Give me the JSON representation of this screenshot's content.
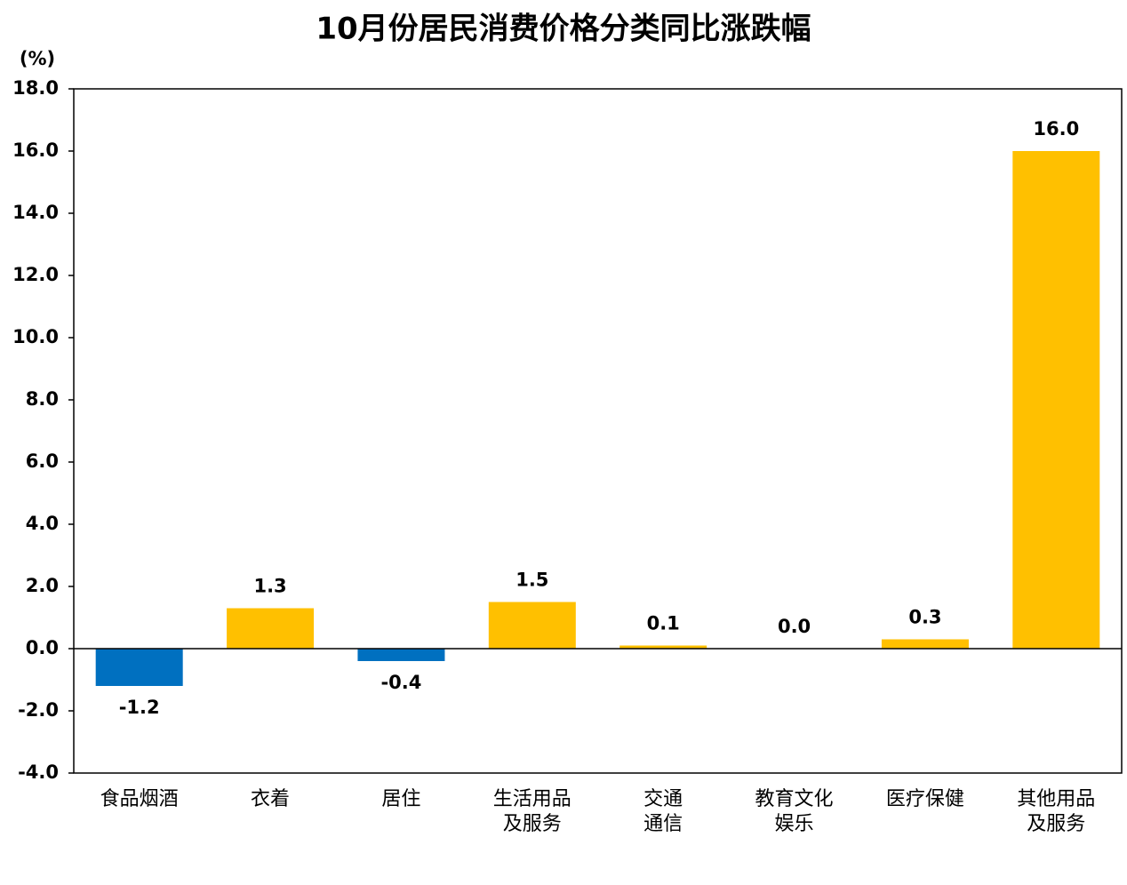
{
  "chart_data": {
    "type": "bar",
    "title": "10月份居民消费价格分类同比涨跌幅",
    "y_label": "(%)",
    "categories": [
      [
        "食品烟酒"
      ],
      [
        "衣着"
      ],
      [
        "居住"
      ],
      [
        "生活用品",
        "及服务"
      ],
      [
        "交通",
        "通信"
      ],
      [
        "教育文化",
        "娱乐"
      ],
      [
        "医疗保健"
      ],
      [
        "其他用品",
        "及服务"
      ]
    ],
    "values": [
      -1.2,
      1.3,
      -0.4,
      1.5,
      0.1,
      0,
      0.3,
      16
    ],
    "value_labels": [
      "-1.2",
      "1.3",
      "-0.4",
      "1.5",
      "0.1",
      "0.0",
      "0.3",
      "16.0"
    ],
    "positive_color": "#ffc000",
    "negative_color": "#0070c0",
    "ylim": [
      -4,
      18
    ],
    "yticks": [
      {
        "value": -4,
        "label": "-4.0"
      },
      {
        "value": -2,
        "label": "-2.0"
      },
      {
        "value": 0,
        "label": "0.0"
      },
      {
        "value": 2,
        "label": "2.0"
      },
      {
        "value": 4,
        "label": "4.0"
      },
      {
        "value": 6,
        "label": "6.0"
      },
      {
        "value": 8,
        "label": "8.0"
      },
      {
        "value": 10,
        "label": "10.0"
      },
      {
        "value": 12,
        "label": "12.0"
      },
      {
        "value": 14,
        "label": "14.0"
      },
      {
        "value": 16,
        "label": "16.0"
      },
      {
        "value": 18,
        "label": "18.0"
      }
    ],
    "grid": false
  }
}
